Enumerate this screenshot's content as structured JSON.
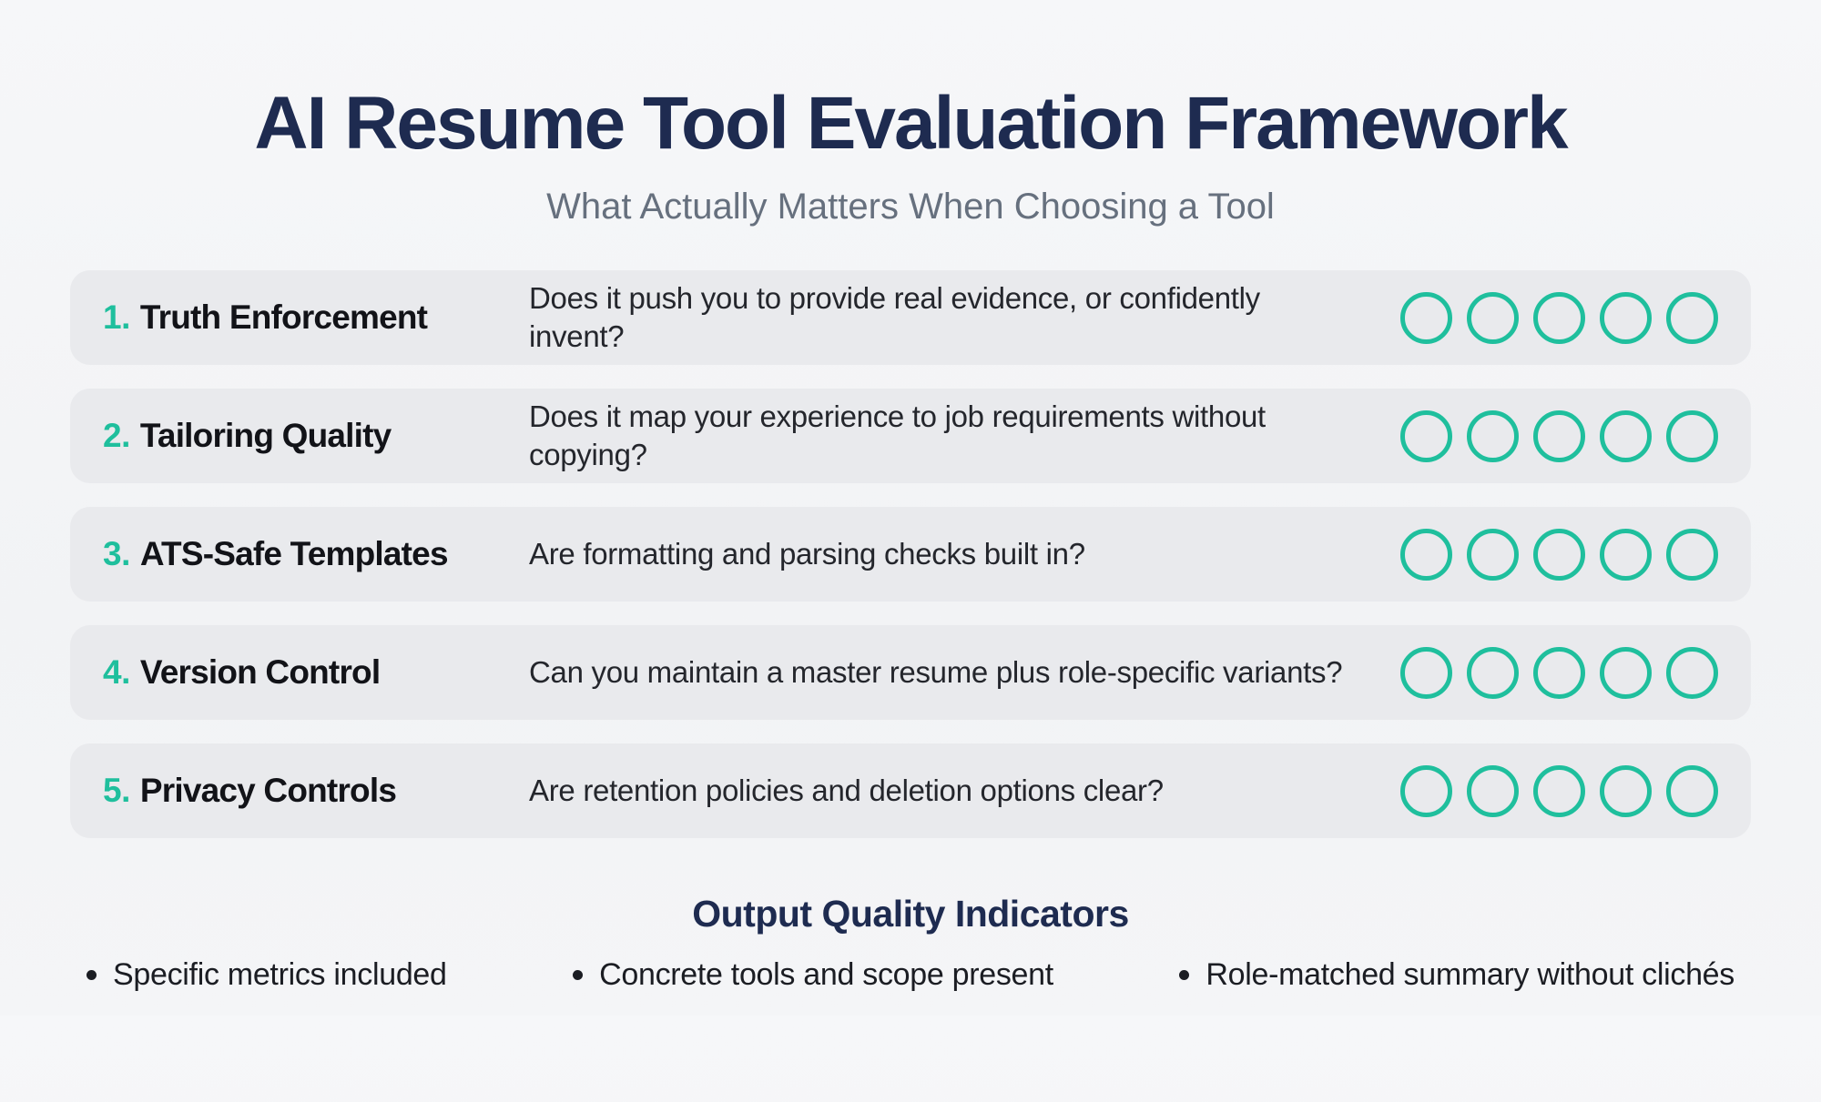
{
  "header": {
    "title": "AI Resume Tool Evaluation Framework",
    "subtitle": "What Actually Matters When Choosing a Tool"
  },
  "colors": {
    "accent_teal": "#1fbf9d",
    "navy": "#1e2b50",
    "card_background": "#e9eaed",
    "page_background": "#f3f4f6"
  },
  "criteria": [
    {
      "number": "1.",
      "name": "Truth Enforcement",
      "question": "Does it push you to provide real evidence, or confidently invent?",
      "rating_circles": 5
    },
    {
      "number": "2.",
      "name": "Tailoring Quality",
      "question": "Does it map your experience to job requirements without copying?",
      "rating_circles": 5
    },
    {
      "number": "3.",
      "name": "ATS-Safe Templates",
      "question": "Are formatting and parsing checks built in?",
      "rating_circles": 5
    },
    {
      "number": "4.",
      "name": "Version Control",
      "question": "Can you maintain a master resume plus role-specific variants?",
      "rating_circles": 5
    },
    {
      "number": "5.",
      "name": "Privacy Controls",
      "question": "Are retention policies and deletion options clear?",
      "rating_circles": 5
    }
  ],
  "footer": {
    "heading": "Output Quality Indicators",
    "bullets": [
      "Specific metrics included",
      "Concrete tools and scope present",
      "Role-matched summary without clichés"
    ]
  }
}
